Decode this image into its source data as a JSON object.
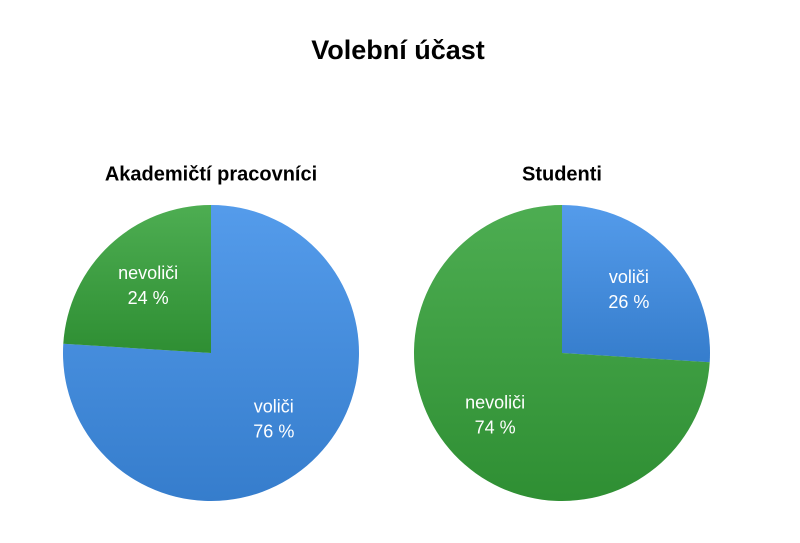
{
  "title": "Volební účast",
  "chart_data": [
    {
      "type": "pie",
      "title": "Akademičtí pracovníci",
      "categories": [
        "voliči",
        "nevoliči"
      ],
      "values": [
        76,
        24
      ],
      "value_labels": [
        "76 %",
        "24 %"
      ],
      "colors": [
        "#3d8ee8",
        "#35a23a"
      ]
    },
    {
      "type": "pie",
      "title": "Studenti",
      "categories": [
        "voliči",
        "nevoliči"
      ],
      "values": [
        26,
        74
      ],
      "value_labels": [
        "26 %",
        "74 %"
      ],
      "colors": [
        "#3d8ee8",
        "#35a23a"
      ]
    }
  ]
}
